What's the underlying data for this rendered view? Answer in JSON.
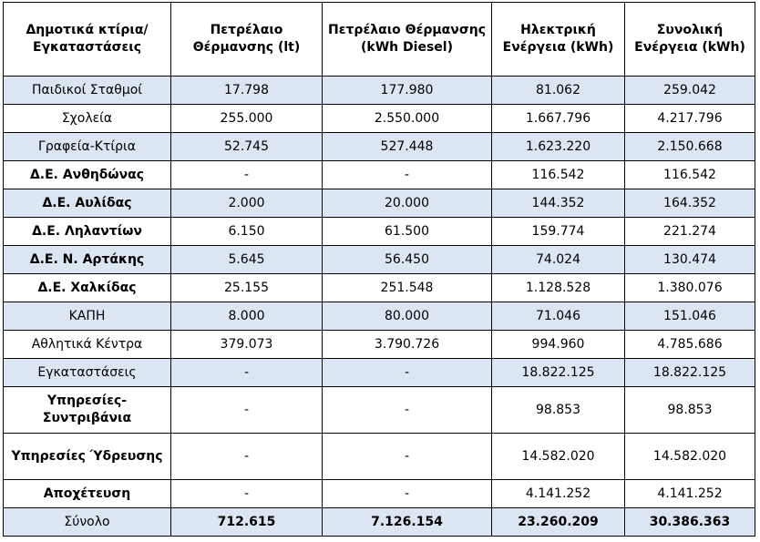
{
  "table": {
    "headers": [
      "Δημοτικά κτίρια/ Εγκαταστάσεις",
      "Πετρέλαιο Θέρμανσης (lt)",
      "Πετρέλαιο Θέρμανσης (kWh Diesel)",
      "Ηλεκτρική Ενέργεια (kWh)",
      "Συνολική Ενέργεια (kWh)"
    ],
    "rows": [
      {
        "name": "Παιδικοί Σταθμοί",
        "oil_lt": "17.798",
        "oil_kwh": "177.980",
        "elec": "81.062",
        "total": "259.042"
      },
      {
        "name": "Σχολεία",
        "oil_lt": "255.000",
        "oil_kwh": "2.550.000",
        "elec": "1.667.796",
        "total": "4.217.796"
      },
      {
        "name": "Γραφεία-Κτίρια",
        "oil_lt": "52.745",
        "oil_kwh": "527.448",
        "elec": "1.623.220",
        "total": "2.150.668"
      },
      {
        "name": "Δ.Ε. Ανθηδώνας",
        "oil_lt": "-",
        "oil_kwh": "-",
        "elec": "116.542",
        "total": "116.542"
      },
      {
        "name": "Δ.Ε. Αυλίδας",
        "oil_lt": "2.000",
        "oil_kwh": "20.000",
        "elec": "144.352",
        "total": "164.352"
      },
      {
        "name": "Δ.Ε. Ληλαντίων",
        "oil_lt": "6.150",
        "oil_kwh": "61.500",
        "elec": "159.774",
        "total": "221.274"
      },
      {
        "name": "Δ.Ε. Ν. Αρτάκης",
        "oil_lt": "5.645",
        "oil_kwh": "56.450",
        "elec": "74.024",
        "total": "130.474"
      },
      {
        "name": "Δ.Ε. Χαλκίδας",
        "oil_lt": "25.155",
        "oil_kwh": "251.548",
        "elec": "1.128.528",
        "total": "1.380.076"
      },
      {
        "name": "ΚΑΠΗ",
        "oil_lt": "8.000",
        "oil_kwh": "80.000",
        "elec": "71.046",
        "total": "151.046"
      },
      {
        "name": "Αθλητικά Κέντρα",
        "oil_lt": "379.073",
        "oil_kwh": "3.790.726",
        "elec": "994.960",
        "total": "4.785.686"
      },
      {
        "name": "Εγκαταστάσεις",
        "oil_lt": "-",
        "oil_kwh": "-",
        "elec": "18.822.125",
        "total": "18.822.125"
      },
      {
        "name": "Υπηρεσίες-Συντριβάνια",
        "oil_lt": "-",
        "oil_kwh": "-",
        "elec": "98.853",
        "total": "98.853"
      },
      {
        "name": "Υπηρεσίες Ύδρευσης",
        "oil_lt": "-",
        "oil_kwh": "-",
        "elec": "14.582.020",
        "total": "14.582.020"
      },
      {
        "name": "Αποχέτευση",
        "oil_lt": "-",
        "oil_kwh": "-",
        "elec": "4.141.252",
        "total": "4.141.252"
      }
    ],
    "total": {
      "name": "Σύνολο",
      "oil_lt": "712.615",
      "oil_kwh": "7.126.154",
      "elec": "23.260.209",
      "total": "30.386.363"
    }
  },
  "colors": {
    "row_shade": "#dce6f2",
    "border": "#000000"
  }
}
